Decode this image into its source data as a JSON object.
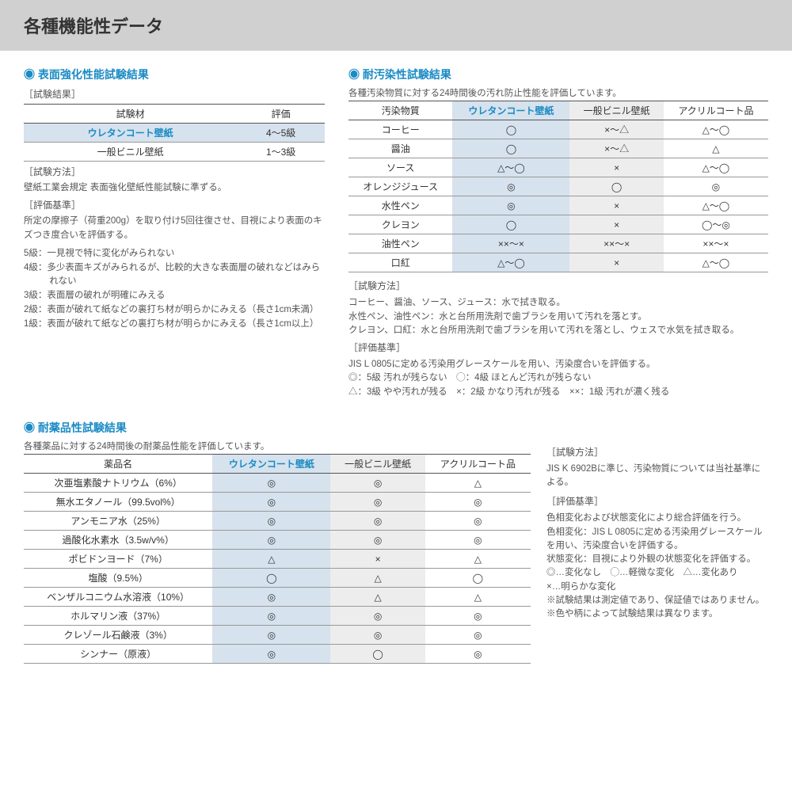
{
  "page_title": "各種機能性データ",
  "colors": {
    "accent": "#1a8bc4",
    "header_bg": "#d0d0d0",
    "highlight_bg": "#d6e2ed",
    "alt_bg": "#ededed",
    "border": "#999"
  },
  "section1": {
    "title": "表面強化性能試験結果",
    "result_label": "［試験結果］",
    "table": {
      "columns": [
        "試験材",
        "評価"
      ],
      "rows": [
        {
          "cells": [
            "ウレタンコート壁紙",
            "4～5級"
          ],
          "highlight": true
        },
        {
          "cells": [
            "一般ビニル壁紙",
            "1～3級"
          ],
          "highlight": false
        }
      ]
    },
    "method_label": "［試験方法］",
    "method_text": "壁紙工業会規定 表面強化壁紙性能試験に準ずる。",
    "criteria_label": "［評価基準］",
    "criteria_text": "所定の摩擦子（荷重200g）を取り付け5回往復させ、目視により表面のキズつき度合いを評価する。",
    "grades": [
      "5級：一見視で特に変化がみられない",
      "4級：多少表面キズがみられるが、比較的大きな表面層の破れなどはみられない",
      "3級：表面層の破れが明確にみえる",
      "2級：表面が破れて紙などの裏打ち材が明らかにみえる（長さ1cm未満）",
      "1級：表面が破れて紙などの裏打ち材が明らかにみえる（長さ1cm以上）"
    ]
  },
  "section2": {
    "title": "耐汚染性試験結果",
    "intro": "各種汚染物質に対する24時間後の汚れ防止性能を評価しています。",
    "table": {
      "columns": [
        "汚染物質",
        "ウレタンコート壁紙",
        "一般ビニル壁紙",
        "アクリルコート品"
      ],
      "rows": [
        [
          "コーヒー",
          "◯",
          "×～△",
          "△～◯"
        ],
        [
          "醤油",
          "◯",
          "×～△",
          "△"
        ],
        [
          "ソース",
          "△～◯",
          "×",
          "△～◯"
        ],
        [
          "オレンジジュース",
          "◎",
          "◯",
          "◎"
        ],
        [
          "水性ペン",
          "◎",
          "×",
          "△～◯"
        ],
        [
          "クレヨン",
          "◯",
          "×",
          "◯～◎"
        ],
        [
          "油性ペン",
          "××～×",
          "××～×",
          "××～×"
        ],
        [
          "口紅",
          "△～◯",
          "×",
          "△～◯"
        ]
      ]
    },
    "method_label": "［試験方法］",
    "method_lines": [
      "コーヒー、醤油、ソース、ジュース：水で拭き取る。",
      "水性ペン、油性ペン：水と台所用洗剤で歯ブラシを用いて汚れを落とす。",
      "クレヨン、口紅：水と台所用洗剤で歯ブラシを用いて汚れを落とし、ウェスで水気を拭き取る。"
    ],
    "criteria_label": "［評価基準］",
    "criteria_lines": [
      "JIS L 0805に定める汚染用グレースケールを用い、汚染度合いを評価する。",
      "◎：5級 汚れが残らない　◯：4級 ほとんど汚れが残らない",
      "△：3級 やや汚れが残る　×：2級 かなり汚れが残る　××：1級 汚れが濃く残る"
    ]
  },
  "section3": {
    "title": "耐薬品性試験結果",
    "intro": "各種薬品に対する24時間後の耐薬品性能を評価しています。",
    "table": {
      "columns": [
        "薬品名",
        "ウレタンコート壁紙",
        "一般ビニル壁紙",
        "アクリルコート品"
      ],
      "rows": [
        [
          "次亜塩素酸ナトリウム（6%）",
          "◎",
          "◎",
          "△"
        ],
        [
          "無水エタノール（99.5vol%）",
          "◎",
          "◎",
          "◎"
        ],
        [
          "アンモニア水（25%）",
          "◎",
          "◎",
          "◎"
        ],
        [
          "過酸化水素水（3.5w/v%）",
          "◎",
          "◎",
          "◎"
        ],
        [
          "ポビドンヨード（7%）",
          "△",
          "×",
          "△"
        ],
        [
          "塩酸（9.5%）",
          "◯",
          "△",
          "◯"
        ],
        [
          "ベンザルコニウム水溶液（10%）",
          "◎",
          "△",
          "△"
        ],
        [
          "ホルマリン液（37%）",
          "◎",
          "◎",
          "◎"
        ],
        [
          "クレゾール石鹸液（3%）",
          "◎",
          "◎",
          "◎"
        ],
        [
          "シンナー（原液）",
          "◎",
          "◯",
          "◎"
        ]
      ]
    },
    "right": {
      "method_label": "［試験方法］",
      "method_text": "JIS K 6902Bに準じ、汚染物質については当社基準による。",
      "criteria_label": "［評価基準］",
      "criteria_lines": [
        "色相変化および状態変化により総合評価を行う。",
        "色相変化：JIS L 0805に定める汚染用グレースケールを用い、汚染度合いを評価する。",
        "状態変化：目視により外観の状態変化を評価する。",
        "◎…変化なし　◯…軽微な変化　△…変化あり",
        "×…明らかな変化",
        "※試験結果は測定値であり、保証値ではありません。",
        "※色や柄によって試験結果は異なります。"
      ]
    }
  }
}
